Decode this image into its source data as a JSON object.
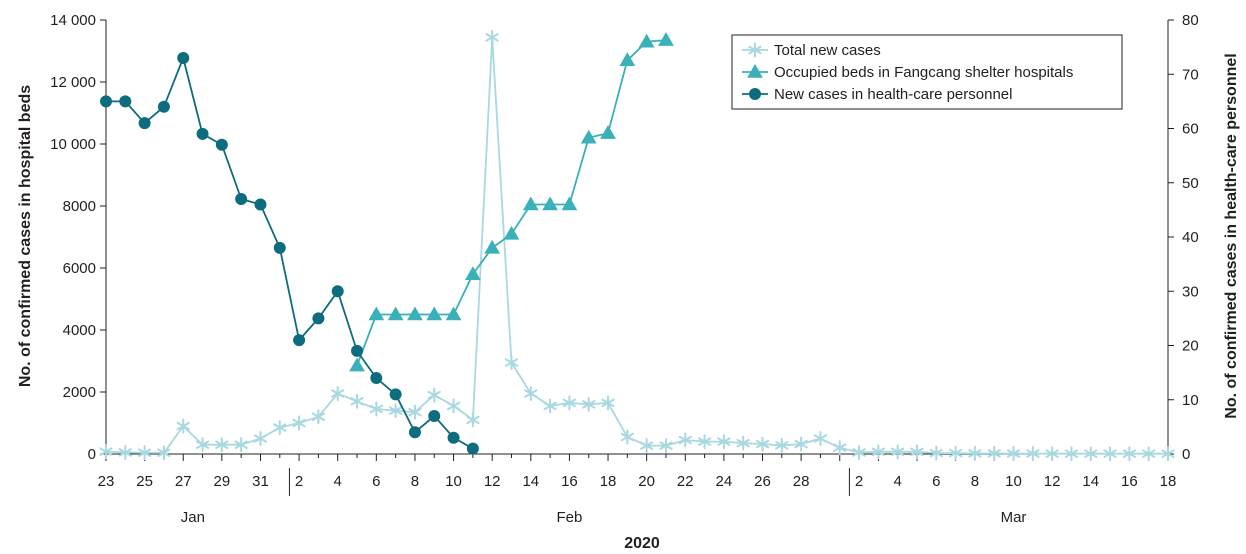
{
  "chart_data": {
    "type": "line",
    "xlabel": "2020",
    "ylabel_left": "No. of confirmed cases in hospital beds",
    "ylabel_right": "No. of confirmed cases in health-care personnel",
    "ylim_left": [
      0,
      14000
    ],
    "ylim_right": [
      0,
      80
    ],
    "yticks_left": [
      "0",
      "2000",
      "4000",
      "6000",
      "8000",
      "10 000",
      "12 000",
      "14 000"
    ],
    "yticks_right": [
      "0",
      "10",
      "20",
      "30",
      "40",
      "50",
      "60",
      "70",
      "80"
    ],
    "months": [
      "Jan",
      "Feb",
      "Mar"
    ],
    "xtick_labels": [
      "23",
      "25",
      "27",
      "29",
      "31",
      "2",
      "4",
      "6",
      "8",
      "10",
      "12",
      "14",
      "16",
      "18",
      "20",
      "22",
      "24",
      "26",
      "28",
      "2",
      "4",
      "6",
      "8",
      "10",
      "12",
      "14",
      "16",
      "18"
    ],
    "grid": false,
    "legend_position": "top-right",
    "series": [
      {
        "name": "Total new cases",
        "axis": "left",
        "marker": "star",
        "color": "#a8d8e0",
        "start": 0,
        "values": [
          77,
          50,
          40,
          40,
          900,
          300,
          300,
          300,
          500,
          850,
          1000,
          1200,
          1950,
          1700,
          1450,
          1400,
          1350,
          1900,
          1550,
          1100,
          13440,
          2950,
          1950,
          1550,
          1650,
          1600,
          1650,
          550,
          270,
          270,
          450,
          400,
          400,
          350,
          320,
          280,
          320,
          500,
          200,
          50,
          70,
          70,
          70,
          30,
          30,
          20,
          20,
          15,
          15,
          10,
          10,
          10,
          10,
          10,
          10,
          10
        ]
      },
      {
        "name": "Occupied beds in Fangcang shelter hospitals",
        "axis": "left",
        "marker": "triangle",
        "color": "#3ab0b8",
        "start": 13,
        "values": [
          2850,
          4500,
          4500,
          4500,
          4500,
          4500,
          5800,
          6650,
          7100,
          8050,
          8050,
          8050,
          10200,
          10350,
          12700,
          13300,
          13350
        ]
      },
      {
        "name": "New cases  in health-care personnel",
        "axis": "right",
        "marker": "circle",
        "color": "#0d6d7e",
        "start": 0,
        "values": [
          65,
          65,
          61,
          64,
          73,
          59,
          57,
          47,
          46,
          38,
          21,
          25,
          30,
          19,
          14,
          11,
          4,
          7,
          3,
          1
        ]
      }
    ]
  }
}
